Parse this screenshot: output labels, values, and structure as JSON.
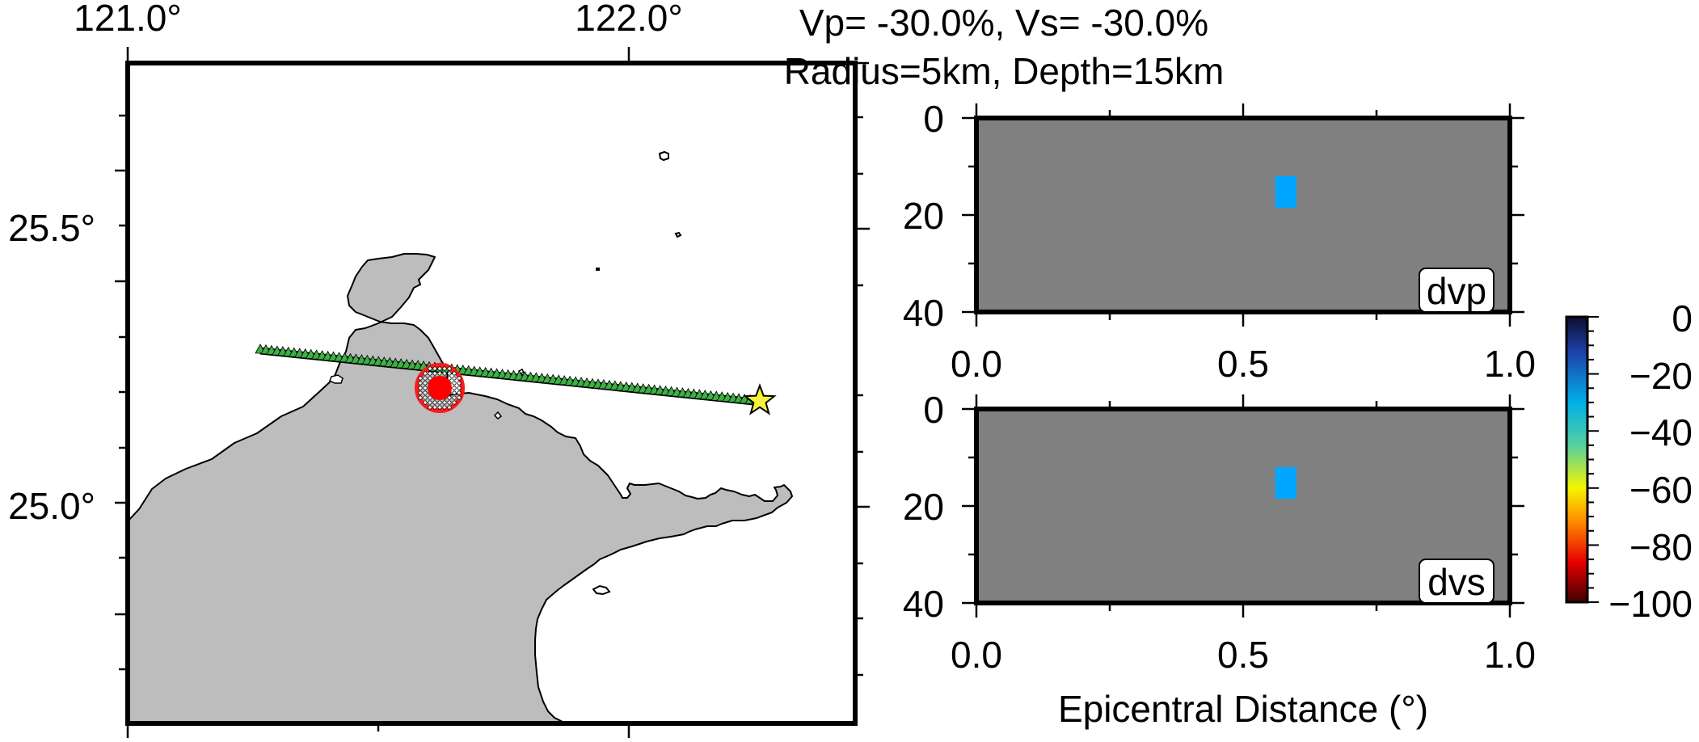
{
  "chart_data": [
    {
      "type": "map",
      "x_ticks": [
        {
          "value": 121.0,
          "label": "121.0°"
        },
        {
          "value": 122.0,
          "label": "122.0°"
        }
      ],
      "y_ticks": [
        {
          "value": 25.5,
          "label": "25.5°"
        },
        {
          "value": 25.0,
          "label": "25.0°"
        }
      ],
      "xlim": [
        121.0,
        122.5
      ],
      "ylim": [
        24.6,
        25.9
      ],
      "grid": false,
      "colors": {
        "land": "#bdbdbd",
        "stations": "#3cb043",
        "anomaly": "#ff0000",
        "event": "#f2f23c"
      },
      "event_star": {
        "lon": 122.26,
        "lat": 25.19
      },
      "anomaly_center": {
        "lon": 121.62,
        "lat": 25.21
      }
    },
    {
      "type": "heatmap",
      "title_line1": "Vp= -30.0%, Vs= -30.0%",
      "title_line2": "Radius=5km, Depth=15km",
      "panels": [
        {
          "label": "dvp",
          "x_ticks": [
            "0.0",
            "0.5",
            "1.0"
          ],
          "y_ticks": [
            "0",
            "20",
            "40"
          ],
          "xlim": [
            0,
            1
          ],
          "ylim": [
            40,
            0
          ],
          "background_value": 0,
          "anomaly": {
            "x": [
              0.56,
              0.6
            ],
            "depth": [
              12,
              18.5
            ],
            "value": -30
          }
        },
        {
          "label": "dvs",
          "x_ticks": [
            "0.0",
            "0.5",
            "1.0"
          ],
          "y_ticks": [
            "0",
            "20",
            "40"
          ],
          "xlim": [
            0,
            1
          ],
          "ylim": [
            40,
            0
          ],
          "background_value": 0,
          "anomaly": {
            "x": [
              0.56,
              0.6
            ],
            "depth": [
              12,
              18.5
            ],
            "value": -30
          }
        }
      ],
      "xlabel": "Epicentral Distance (°)",
      "colors": {
        "background": "#808080",
        "anomaly": "#00a6ff"
      }
    },
    {
      "type": "colorbar",
      "range": [
        -100,
        0
      ],
      "tick_labels": [
        "0",
        "−20",
        "−40",
        "−60",
        "−80",
        "−100"
      ],
      "colormap": [
        "#0d0d2e",
        "#1e3fa6",
        "#00b0e6",
        "#55d0a0",
        "#f5f500",
        "#ff8800",
        "#e60000",
        "#400000"
      ]
    }
  ]
}
